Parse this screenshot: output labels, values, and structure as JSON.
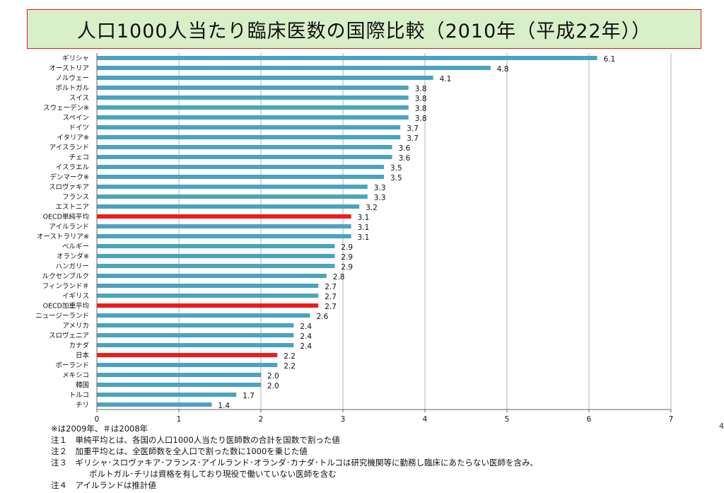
{
  "page": {
    "number": "4"
  },
  "chart_data": {
    "type": "bar",
    "orientation": "horizontal",
    "title": "人口1000人当たり臨床医数の国際比較（2010年（平成22年））",
    "categories": [
      "ギリシャ",
      "オーストリア",
      "ノルウェー",
      "ポルトガル",
      "スイス",
      "スウェーデン※",
      "スペイン",
      "ドイツ",
      "イタリア※",
      "アイスランド",
      "チェコ",
      "イスラエル",
      "デンマーク※",
      "スロヴァキア",
      "フランス",
      "エストニア",
      "OECD単純平均",
      "アイルランド",
      "オーストラリア※",
      "ベルギー",
      "オランダ※",
      "ハンガリー",
      "ルクセンブルク",
      "フィンランド＃",
      "イギリス",
      "OECD加重平均",
      "ニュージーランド",
      "アメリカ",
      "スロヴェニア",
      "カナダ",
      "日本",
      "ポーランド",
      "メキシコ",
      "韓国",
      "トルコ",
      "チリ"
    ],
    "values": [
      6.1,
      4.8,
      4.1,
      3.8,
      3.8,
      3.8,
      3.8,
      3.7,
      3.7,
      3.6,
      3.6,
      3.5,
      3.5,
      3.3,
      3.3,
      3.2,
      3.1,
      3.1,
      3.1,
      2.9,
      2.9,
      2.9,
      2.8,
      2.7,
      2.7,
      2.7,
      2.6,
      2.4,
      2.4,
      2.4,
      2.2,
      2.2,
      2.0,
      2.0,
      1.7,
      1.4
    ],
    "value_labels": [
      "6.1",
      "4.8",
      "4.1",
      "3.8",
      "3.8",
      "3.8",
      "3.8",
      "3.7",
      "3.7",
      "3.6",
      "3.6",
      "3.5",
      "3.5",
      "3.3",
      "3.3",
      "3.2",
      "3.1",
      "3.1",
      "3.1",
      "2.9",
      "2.9",
      "2.9",
      "2.8",
      "2.7",
      "2.7",
      "2.7",
      "2.6",
      "2.4",
      "2.4",
      "2.4",
      "2.2",
      "2.2",
      "2.0",
      "2.0",
      "1.7",
      "1.4"
    ],
    "highlight": [
      "OECD単純平均",
      "OECD加重平均",
      "日本"
    ],
    "xlim": [
      0,
      7
    ],
    "xticks": [
      0,
      1,
      2,
      3,
      4,
      5,
      6,
      7
    ],
    "grid": true,
    "colors": {
      "bar": "#4aa3bf",
      "highlight": "#ee1c1c",
      "grid": "#b0b0b0",
      "axis": "#666666"
    }
  },
  "notes": {
    "line1": "※は2009年、＃は2008年",
    "line2": "注１　単純平均とは、各国の人口1000人当たり医師数の合計を国数で割った値",
    "line3": "注２　加重平均とは、全医師数を全人口で割った数に1000を乗じた値",
    "line4": "注３　ギリシャ･スロヴァキア･フランス･アイルランド･オランダ･カナダ･トルコは研究機関等に勤務し臨床にあたらない医師を含み、",
    "line5": "ポルトガル･チリは資格を有しており現役で働いていない医師を含む",
    "line6": "注４　アイルランドは推計値"
  }
}
